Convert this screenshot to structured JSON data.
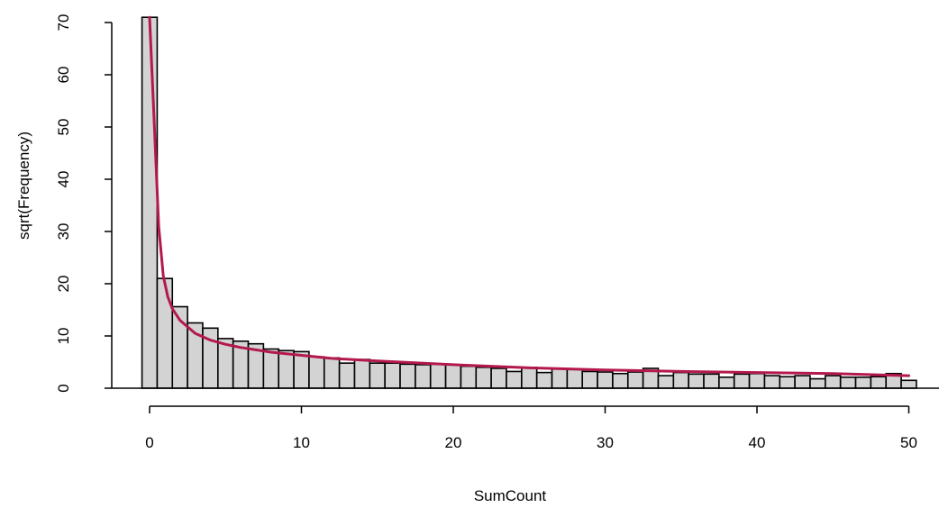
{
  "chart_data": {
    "type": "bar",
    "title": "",
    "xlabel": "SumCount",
    "ylabel": "sqrt(Frequency)",
    "xlim": [
      -0.5,
      50.5
    ],
    "ylim": [
      0,
      70
    ],
    "x_ticks": [
      "0",
      "10",
      "20",
      "30",
      "40",
      "50"
    ],
    "y_ticks": [
      "0",
      "10",
      "20",
      "30",
      "40",
      "50",
      "60",
      "70"
    ],
    "grid": false,
    "legend": "none",
    "categories": [
      0,
      1,
      2,
      3,
      4,
      5,
      6,
      7,
      8,
      9,
      10,
      11,
      12,
      13,
      14,
      15,
      16,
      17,
      18,
      19,
      20,
      21,
      22,
      23,
      24,
      25,
      26,
      27,
      28,
      29,
      30,
      31,
      32,
      33,
      34,
      35,
      36,
      37,
      38,
      39,
      40,
      41,
      42,
      43,
      44,
      45,
      46,
      47,
      48,
      49,
      50
    ],
    "values": [
      71,
      21,
      15.6,
      12.5,
      11.5,
      9.5,
      9,
      8.5,
      7.5,
      7.2,
      7,
      6,
      5.8,
      4.8,
      5.5,
      4.8,
      4.8,
      4.6,
      4.5,
      4.6,
      4.5,
      4.2,
      4,
      3.8,
      3.2,
      4,
      3,
      3.7,
      3.6,
      3.2,
      3.1,
      2.8,
      3.1,
      3.8,
      2.4,
      3,
      2.7,
      2.7,
      2.1,
      2.7,
      2.8,
      2.4,
      2.2,
      2.4,
      1.8,
      2.4,
      2.1,
      2.1,
      2.2,
      2.8,
      1.5
    ],
    "fit_line": {
      "x": [
        0,
        0.3,
        0.6,
        0.9,
        1.2,
        1.5,
        2,
        3,
        4,
        5,
        6,
        8,
        10,
        12,
        15,
        20,
        25,
        30,
        35,
        40,
        45,
        50
      ],
      "y": [
        71,
        51,
        31,
        21.5,
        17.5,
        15.2,
        13,
        10.5,
        9.2,
        8.4,
        7.8,
        6.9,
        6.3,
        5.7,
        5.2,
        4.5,
        3.9,
        3.5,
        3.2,
        3,
        2.8,
        2.4
      ]
    },
    "colors": {
      "bar_fill": "#d3d3d3",
      "bar_stroke": "#000000",
      "fit_line": "#b3194a"
    }
  }
}
